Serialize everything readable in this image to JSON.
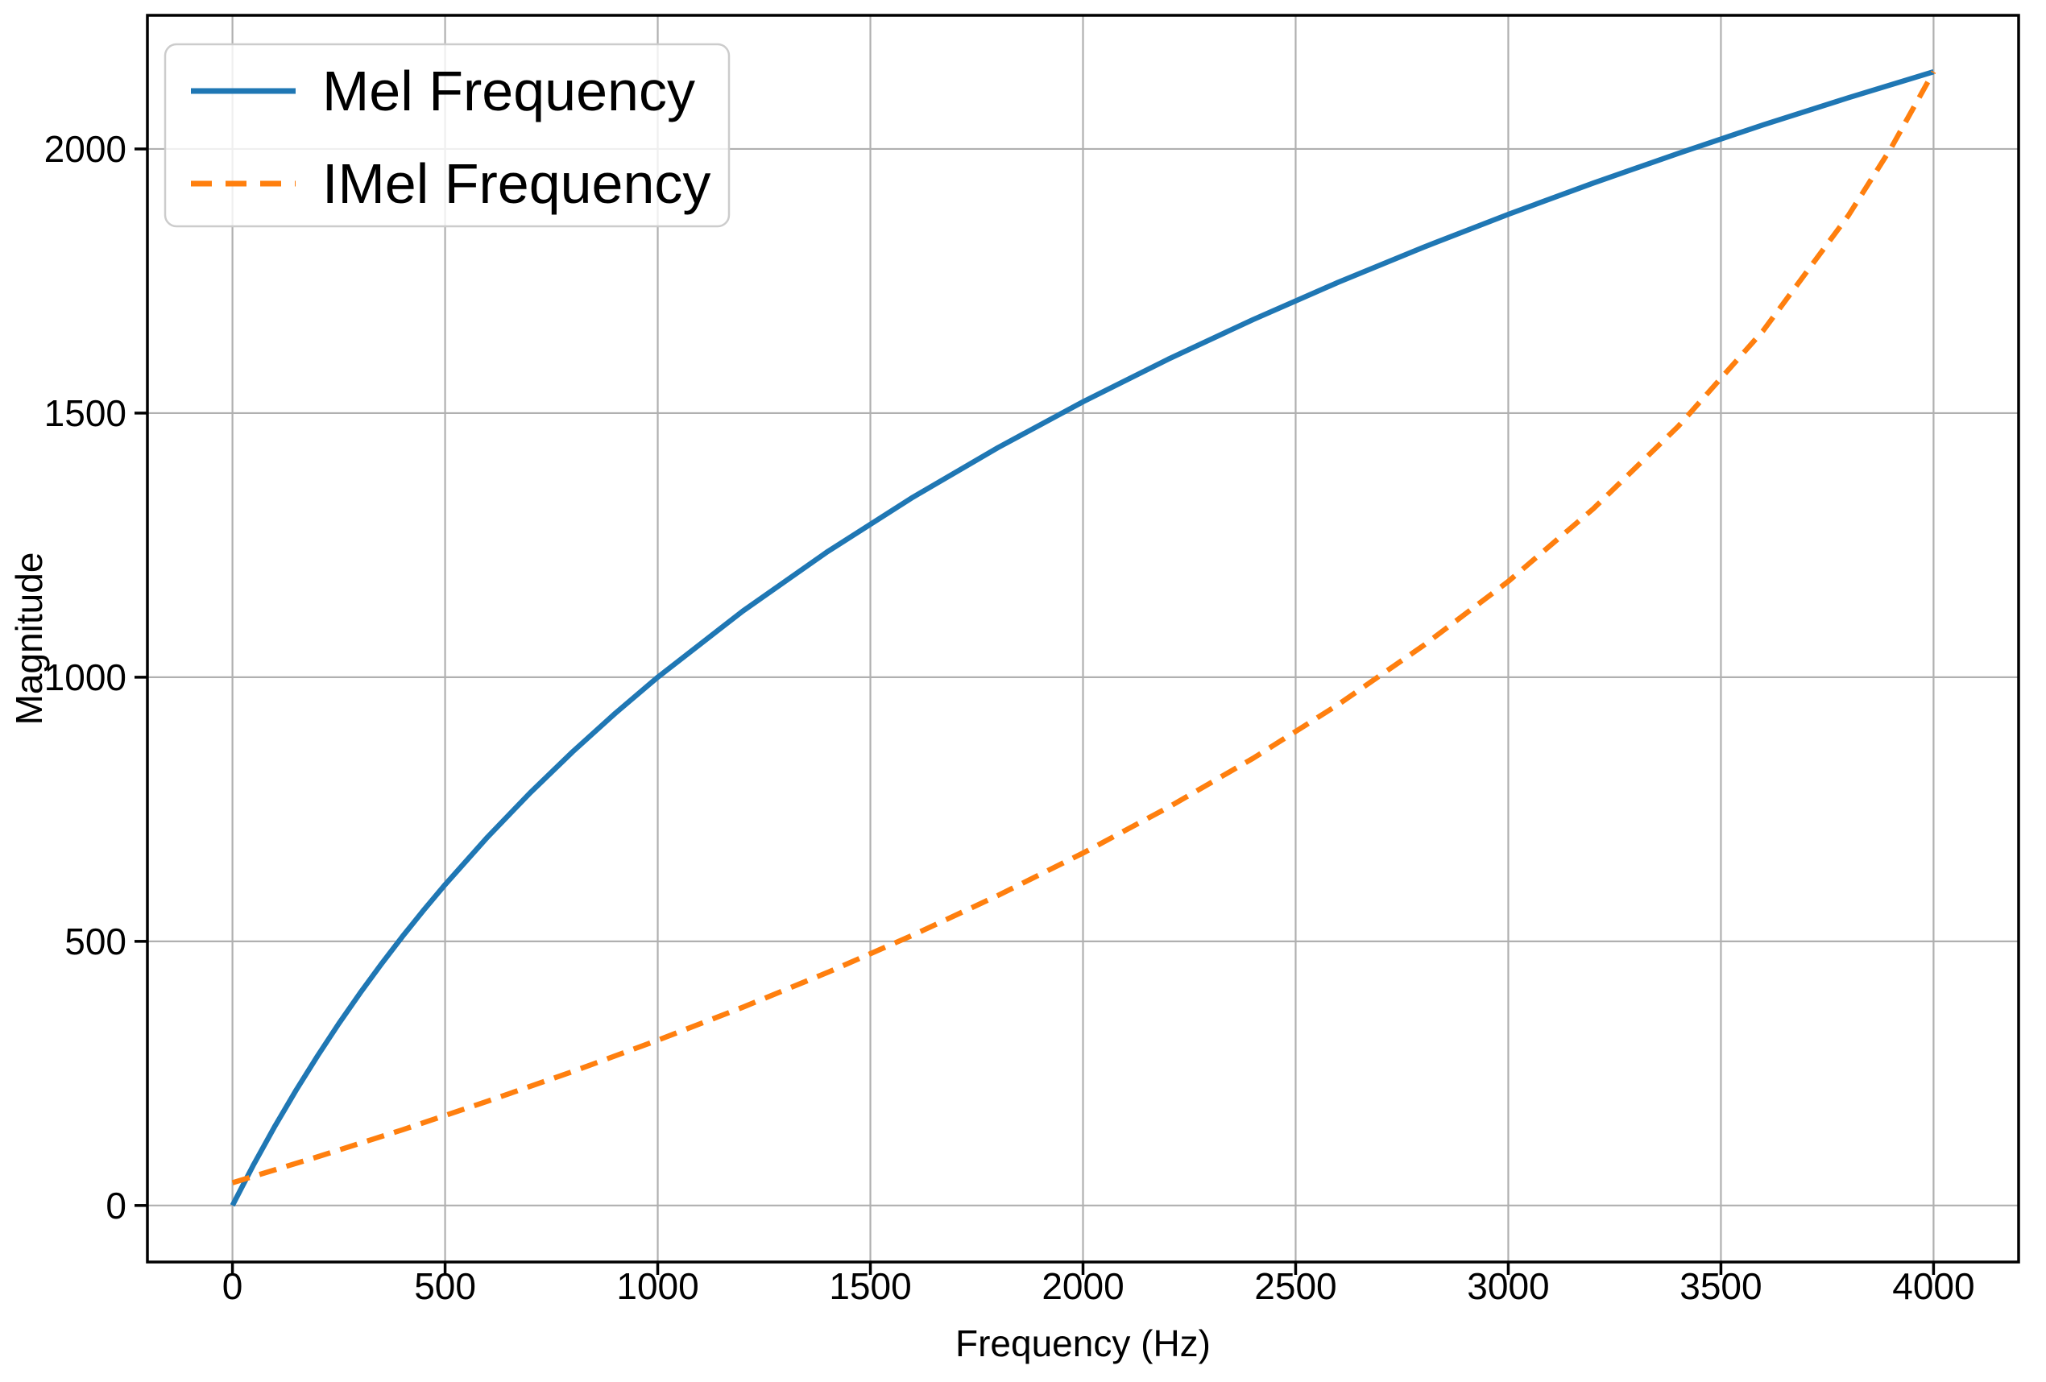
{
  "figure": {
    "background": "#ffffff"
  },
  "chart_data": {
    "type": "line",
    "title": "",
    "xlabel": "Frequency (Hz)",
    "ylabel": "Magnitude",
    "xlim": [
      -200,
      4200
    ],
    "ylim": [
      -107,
      2253
    ],
    "xticks": [
      0,
      500,
      1000,
      1500,
      2000,
      2500,
      3000,
      3500,
      4000
    ],
    "yticks": [
      0,
      500,
      1000,
      1500,
      2000
    ],
    "grid": true,
    "grid_color": "#b0b0b0",
    "spine_color": "#000000",
    "legend_position": "upper left",
    "legend_border_color": "#cccccc",
    "legend_background": "#ffffff",
    "legend_opacity": 0.8,
    "series": [
      {
        "name": "Mel Frequency",
        "color": "#1f77b4",
        "style": "solid",
        "x": [
          0,
          50,
          100,
          150,
          200,
          250,
          300,
          350,
          400,
          450,
          500,
          600,
          700,
          800,
          900,
          1000,
          1200,
          1400,
          1600,
          1800,
          2000,
          2200,
          2400,
          2600,
          2800,
          3000,
          3200,
          3400,
          3600,
          3800,
          4000
        ],
        "y": [
          0.0,
          77.8,
          150.5,
          218.8,
          283.2,
          344.3,
          402.0,
          457.0,
          509.6,
          559.5,
          607.4,
          697.7,
          781.2,
          858.9,
          931.7,
          1000.0,
          1125.2,
          1238.1,
          1340.7,
          1434.6,
          1521.3,
          1601.9,
          1677.0,
          1747.6,
          1813.8,
          1876.3,
          1935.5,
          1991.7,
          2045.8,
          2097.0,
          2146.1
        ]
      },
      {
        "name": "IMel Frequency",
        "color": "#ff7f0e",
        "style": "dashed",
        "x": [
          0,
          200,
          400,
          600,
          800,
          1000,
          1200,
          1400,
          1600,
          1800,
          2000,
          2200,
          2400,
          2600,
          2800,
          3000,
          3200,
          3400,
          3600,
          3800,
          3900,
          4000
        ],
        "y": [
          43.0,
          92.1,
          143.3,
          197.4,
          253.6,
          312.8,
          375.2,
          441.4,
          511.8,
          586.8,
          667.1,
          753.4,
          846.6,
          948.3,
          1059.8,
          1181.4,
          1318.9,
          1475.2,
          1656.6,
          1874.3,
          2001.6,
          2146.1
        ]
      }
    ]
  }
}
